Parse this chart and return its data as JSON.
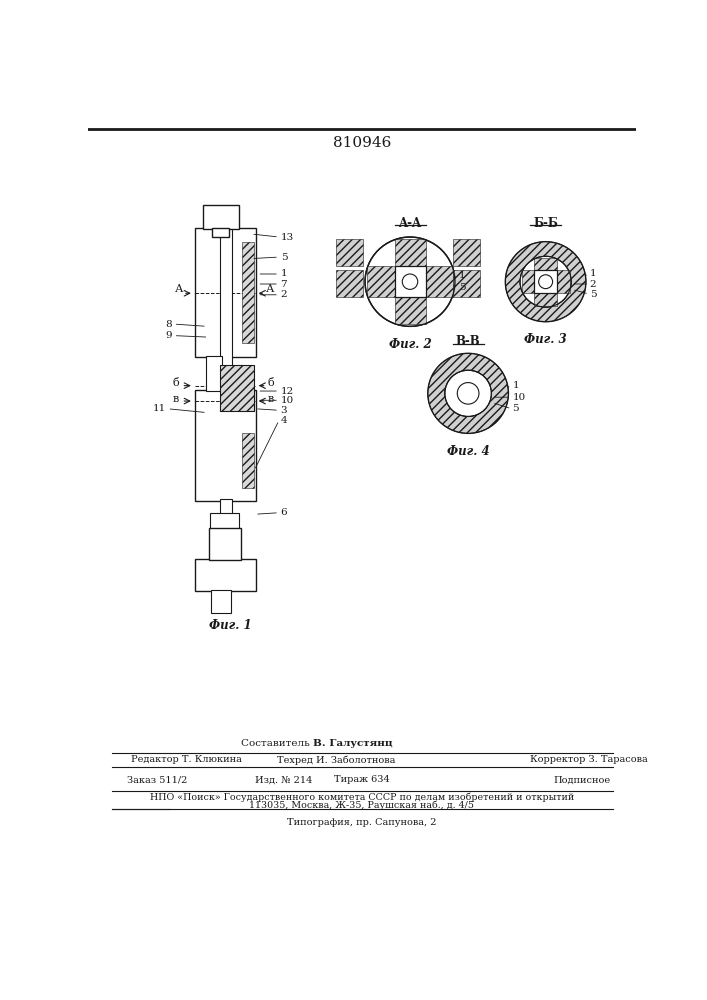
{
  "title": "810946",
  "bg_color": "#ffffff",
  "line_color": "#1a1a1a",
  "fig1_label": "Фиг. 1",
  "fig2_label": "Фиг. 2",
  "fig3_label": "Фиг. 3",
  "fig4_label": "Фиг. 4",
  "section_AA": "A-A",
  "section_BB": "Б-Б",
  "section_VV": "В-В",
  "footer_sestavitel": "Составитель ",
  "footer_sestavitel_name": "В. Галустянц",
  "footer_redaktor": "Редактор Т. Клюкина",
  "footer_tehred": "Техред И. Заболотнова",
  "footer_korrektor": "Корректор З. Тарасова",
  "footer_zakaz": "Заказ 511/2",
  "footer_izd": "Изд. № 214",
  "footer_tirazh": "Тираж 634",
  "footer_podpisnoe": "Подписное",
  "footer_npo": "НПО «Поиск» Государственного комитета СССР по делам изобретений и открытий",
  "footer_addr": "113035, Москва, Ж-35, Раушская наб., д. 4/5",
  "footer_tipograf": "Типография, пр. Сапунова, 2"
}
